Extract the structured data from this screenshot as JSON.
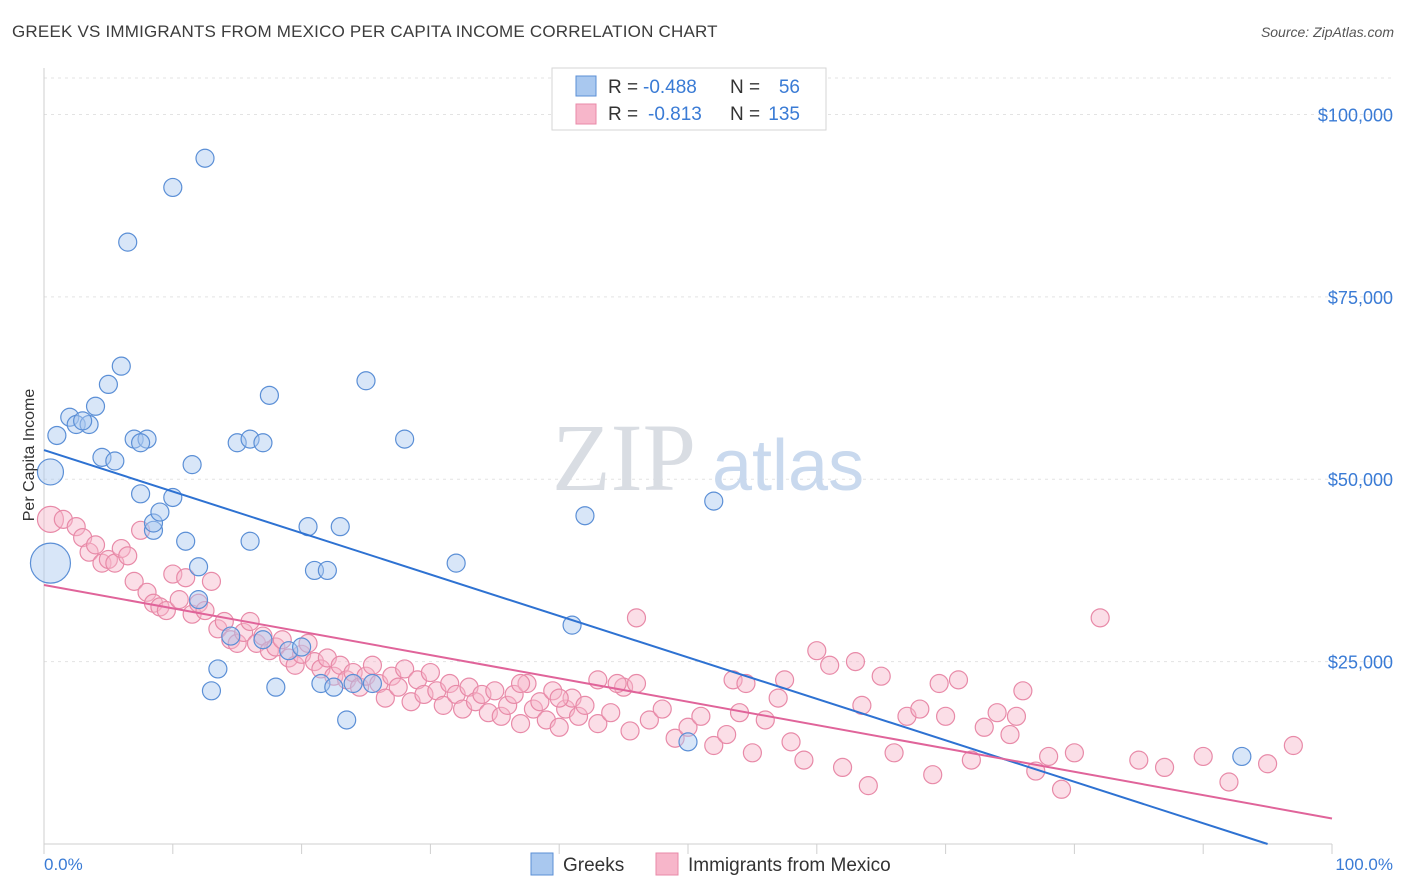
{
  "title": "GREEK VS IMMIGRANTS FROM MEXICO PER CAPITA INCOME CORRELATION CHART",
  "source": "Source: ZipAtlas.com",
  "watermark": {
    "zip": "ZIP",
    "atlas": "atlas"
  },
  "legend": {
    "row1": {
      "r_label": "R =",
      "r_value": "-0.488",
      "n_label": "N =",
      "n_value": "56"
    },
    "row2": {
      "r_label": "R =",
      "r_value": "-0.813",
      "n_label": "N =",
      "n_value": "135"
    }
  },
  "bottom_legend": {
    "greeks": "Greeks",
    "mexico": "Immigrants from Mexico"
  },
  "colors": {
    "greeks_fill": "#a9c8ef",
    "greeks_stroke": "#5b8fd6",
    "greeks_line": "#2e72d2",
    "mexico_fill": "#f7b6ca",
    "mexico_stroke": "#e88aa8",
    "mexico_line": "#e0649a"
  },
  "chart_data": {
    "type": "scatter",
    "title": "GREEK VS IMMIGRANTS FROM MEXICO PER CAPITA INCOME CORRELATION CHART",
    "xlabel": "",
    "ylabel": "Per Capita Income",
    "xlim": [
      0,
      100
    ],
    "ylim": [
      0,
      105000
    ],
    "x_tick_labels": [
      "0.0%",
      "100.0%"
    ],
    "y_ticks": [
      25000,
      50000,
      75000,
      100000
    ],
    "y_tick_labels": [
      "$25,000",
      "$50,000",
      "$75,000",
      "$100,000"
    ],
    "grid": true,
    "legend_position": "top-center",
    "series": [
      {
        "name": "Greeks",
        "trend": {
          "x": [
            0,
            95
          ],
          "y": [
            54000,
            0
          ]
        },
        "points": [
          [
            0.5,
            38500,
            3
          ],
          [
            0.5,
            51000,
            2
          ],
          [
            1,
            56000,
            1
          ],
          [
            2,
            58500,
            1
          ],
          [
            2.5,
            57500,
            1
          ],
          [
            3.5,
            57500,
            1
          ],
          [
            4,
            60000,
            1
          ],
          [
            4.5,
            53000,
            1
          ],
          [
            5,
            63000,
            1
          ],
          [
            5.5,
            52500,
            1
          ],
          [
            6,
            65500,
            1
          ],
          [
            7,
            55500,
            1
          ],
          [
            8,
            55500,
            1
          ],
          [
            7.5,
            48000,
            1
          ],
          [
            8.5,
            43000,
            1
          ],
          [
            8.5,
            44000,
            1
          ],
          [
            9,
            45500,
            1
          ],
          [
            10,
            47500,
            1
          ],
          [
            11,
            41500,
            1
          ],
          [
            12,
            33500,
            1
          ],
          [
            11.5,
            52000,
            1
          ],
          [
            12,
            38000,
            1
          ],
          [
            13,
            21000,
            1
          ],
          [
            13.5,
            24000,
            1
          ],
          [
            14.5,
            28500,
            1
          ],
          [
            15,
            55000,
            1
          ],
          [
            16,
            41500,
            1
          ],
          [
            16,
            55500,
            1
          ],
          [
            17,
            28000,
            1
          ],
          [
            17.5,
            61500,
            1
          ],
          [
            18,
            21500,
            1
          ],
          [
            19,
            26500,
            1
          ],
          [
            20,
            27000,
            1
          ],
          [
            20.5,
            43500,
            1
          ],
          [
            21,
            37500,
            1
          ],
          [
            21.5,
            22000,
            1
          ],
          [
            22,
            37500,
            1
          ],
          [
            22.5,
            21500,
            1
          ],
          [
            23,
            43500,
            1
          ],
          [
            24,
            22000,
            1
          ],
          [
            23.5,
            17000,
            1
          ],
          [
            25,
            63500,
            1
          ],
          [
            25.5,
            22000,
            1
          ],
          [
            28,
            55500,
            1
          ],
          [
            32,
            38500,
            1
          ],
          [
            41,
            30000,
            1
          ],
          [
            42,
            45000,
            1
          ],
          [
            50,
            14000,
            1
          ],
          [
            52,
            47000,
            1
          ],
          [
            93,
            12000,
            1
          ],
          [
            10,
            90000,
            1
          ],
          [
            12.5,
            94000,
            1
          ],
          [
            6.5,
            82500,
            1
          ],
          [
            3,
            58000,
            1
          ],
          [
            7.5,
            55000,
            1
          ],
          [
            17,
            55000,
            1
          ]
        ]
      },
      {
        "name": "Immigrants from Mexico",
        "trend": {
          "x": [
            0,
            100
          ],
          "y": [
            35500,
            3500
          ]
        },
        "points": [
          [
            0.5,
            44500,
            2
          ],
          [
            1.5,
            44500,
            1
          ],
          [
            2.5,
            43500,
            1
          ],
          [
            3,
            42000,
            1
          ],
          [
            3.5,
            40000,
            1
          ],
          [
            4,
            41000,
            1
          ],
          [
            4.5,
            38500,
            1
          ],
          [
            5,
            39000,
            1
          ],
          [
            5.5,
            38500,
            1
          ],
          [
            6,
            40500,
            1
          ],
          [
            6.5,
            39500,
            1
          ],
          [
            7,
            36000,
            1
          ],
          [
            7.5,
            43000,
            1
          ],
          [
            8,
            34500,
            1
          ],
          [
            8.5,
            33000,
            1
          ],
          [
            9,
            32500,
            1
          ],
          [
            9.5,
            32000,
            1
          ],
          [
            10,
            37000,
            1
          ],
          [
            10.5,
            33500,
            1
          ],
          [
            11,
            36500,
            1
          ],
          [
            11.5,
            31500,
            1
          ],
          [
            12,
            33000,
            1
          ],
          [
            12.5,
            32000,
            1
          ],
          [
            13,
            36000,
            1
          ],
          [
            13.5,
            29500,
            1
          ],
          [
            14,
            30500,
            1
          ],
          [
            14.5,
            28000,
            1
          ],
          [
            15,
            27500,
            1
          ],
          [
            15.5,
            29000,
            1
          ],
          [
            16,
            30500,
            1
          ],
          [
            16.5,
            27500,
            1
          ],
          [
            17,
            28500,
            1
          ],
          [
            17.5,
            26500,
            1
          ],
          [
            18,
            27000,
            1
          ],
          [
            18.5,
            28000,
            1
          ],
          [
            19,
            25500,
            1
          ],
          [
            19.5,
            24500,
            1
          ],
          [
            20,
            26000,
            1
          ],
          [
            20.5,
            27500,
            1
          ],
          [
            21,
            25000,
            1
          ],
          [
            21.5,
            24000,
            1
          ],
          [
            22,
            25500,
            1
          ],
          [
            22.5,
            23000,
            1
          ],
          [
            23,
            24500,
            1
          ],
          [
            23.5,
            22500,
            1
          ],
          [
            24,
            23500,
            1
          ],
          [
            24.5,
            21500,
            1
          ],
          [
            25,
            23000,
            1
          ],
          [
            25.5,
            24500,
            1
          ],
          [
            26,
            22000,
            1
          ],
          [
            26.5,
            20000,
            1
          ],
          [
            27,
            23000,
            1
          ],
          [
            27.5,
            21500,
            1
          ],
          [
            28,
            24000,
            1
          ],
          [
            28.5,
            19500,
            1
          ],
          [
            29,
            22500,
            1
          ],
          [
            29.5,
            20500,
            1
          ],
          [
            30,
            23500,
            1
          ],
          [
            30.5,
            21000,
            1
          ],
          [
            31,
            19000,
            1
          ],
          [
            31.5,
            22000,
            1
          ],
          [
            32,
            20500,
            1
          ],
          [
            32.5,
            18500,
            1
          ],
          [
            33,
            21500,
            1
          ],
          [
            33.5,
            19500,
            1
          ],
          [
            34,
            20500,
            1
          ],
          [
            34.5,
            18000,
            1
          ],
          [
            35,
            21000,
            1
          ],
          [
            35.5,
            17500,
            1
          ],
          [
            36,
            19000,
            1
          ],
          [
            36.5,
            20500,
            1
          ],
          [
            37,
            16500,
            1
          ],
          [
            37.5,
            22000,
            1
          ],
          [
            38,
            18500,
            1
          ],
          [
            38.5,
            19500,
            1
          ],
          [
            39,
            17000,
            1
          ],
          [
            39.5,
            21000,
            1
          ],
          [
            40,
            16000,
            1
          ],
          [
            40.5,
            18500,
            1
          ],
          [
            41,
            20000,
            1
          ],
          [
            41.5,
            17500,
            1
          ],
          [
            42,
            19000,
            1
          ],
          [
            43,
            16500,
            1
          ],
          [
            44,
            18000,
            1
          ],
          [
            45,
            21500,
            1
          ],
          [
            45.5,
            15500,
            1
          ],
          [
            46,
            22000,
            1
          ],
          [
            47,
            17000,
            1
          ],
          [
            48,
            18500,
            1
          ],
          [
            49,
            14500,
            1
          ],
          [
            50,
            16000,
            1
          ],
          [
            51,
            17500,
            1
          ],
          [
            52,
            13500,
            1
          ],
          [
            53,
            15000,
            1
          ],
          [
            54,
            18000,
            1
          ],
          [
            55,
            12500,
            1
          ],
          [
            56,
            17000,
            1
          ],
          [
            57,
            20000,
            1
          ],
          [
            58,
            14000,
            1
          ],
          [
            59,
            11500,
            1
          ],
          [
            60,
            26500,
            1
          ],
          [
            61,
            24500,
            1
          ],
          [
            62,
            10500,
            1
          ],
          [
            63,
            25000,
            1
          ],
          [
            64,
            8000,
            1
          ],
          [
            65,
            23000,
            1
          ],
          [
            66,
            12500,
            1
          ],
          [
            67,
            17500,
            1
          ],
          [
            68,
            18500,
            1
          ],
          [
            69,
            9500,
            1
          ],
          [
            70,
            17500,
            1
          ],
          [
            71,
            22500,
            1
          ],
          [
            72,
            11500,
            1
          ],
          [
            73,
            16000,
            1
          ],
          [
            74,
            18000,
            1
          ],
          [
            75,
            15000,
            1
          ],
          [
            76,
            21000,
            1
          ],
          [
            77,
            10000,
            1
          ],
          [
            78,
            12000,
            1
          ],
          [
            79,
            7500,
            1
          ],
          [
            80,
            12500,
            1
          ],
          [
            82,
            31000,
            1
          ],
          [
            85,
            11500,
            1
          ],
          [
            87,
            10500,
            1
          ],
          [
            90,
            12000,
            1
          ],
          [
            92,
            8500,
            1
          ],
          [
            95,
            11000,
            1
          ],
          [
            97,
            13500,
            1
          ],
          [
            46,
            31000,
            1
          ],
          [
            37,
            22000,
            1
          ],
          [
            40,
            20000,
            1
          ],
          [
            43,
            22500,
            1
          ],
          [
            44.5,
            22000,
            1
          ],
          [
            53.5,
            22500,
            1
          ],
          [
            54.5,
            22000,
            1
          ],
          [
            57.5,
            22500,
            1
          ],
          [
            63.5,
            19000,
            1
          ],
          [
            69.5,
            22000,
            1
          ],
          [
            75.5,
            17500,
            1
          ]
        ]
      }
    ]
  }
}
